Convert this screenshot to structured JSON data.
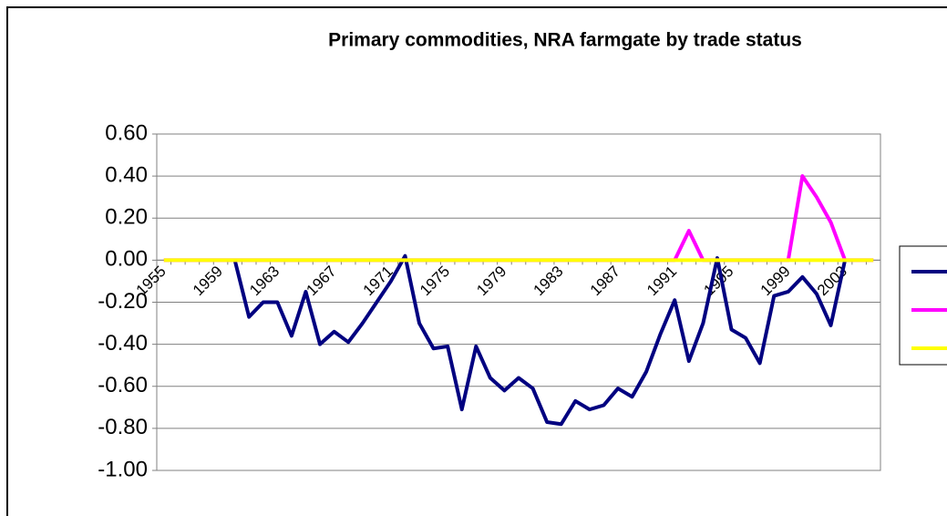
{
  "chart_data": {
    "type": "line",
    "title": "Primary commodities, NRA farmgate by trade status",
    "categories": [
      "1955",
      null,
      null,
      null,
      "1959",
      null,
      null,
      null,
      "1963",
      null,
      null,
      null,
      "1967",
      null,
      null,
      null,
      "1971",
      null,
      null,
      null,
      "1975",
      null,
      null,
      null,
      "1979",
      null,
      null,
      null,
      "1983",
      null,
      null,
      null,
      "1987",
      null,
      null,
      null,
      "1991",
      null,
      null,
      null,
      "1995",
      null,
      null,
      null,
      "1999",
      null,
      null,
      null,
      "2003",
      null,
      null
    ],
    "series": [
      {
        "color": "#000080",
        "values": [
          null,
          null,
          null,
          null,
          null,
          0.0,
          -0.27,
          -0.2,
          -0.2,
          -0.36,
          -0.15,
          -0.4,
          -0.34,
          -0.39,
          -0.3,
          -0.2,
          -0.1,
          0.02,
          -0.3,
          -0.42,
          -0.41,
          -0.71,
          -0.41,
          -0.56,
          -0.62,
          -0.56,
          -0.61,
          -0.77,
          -0.78,
          -0.67,
          -0.71,
          -0.69,
          -0.61,
          -0.65,
          -0.53,
          -0.35,
          -0.19,
          -0.48,
          -0.3,
          0.01,
          -0.33,
          -0.37,
          -0.49,
          -0.17,
          -0.15,
          -0.08,
          -0.16,
          -0.31,
          0.0,
          null,
          null
        ]
      },
      {
        "color": "#ff00ff",
        "values": [
          0,
          0,
          0,
          0,
          0,
          0,
          0,
          0,
          0,
          0,
          0,
          0,
          0,
          0,
          0,
          0,
          0,
          0,
          0,
          0,
          0,
          0,
          0,
          0,
          0,
          0,
          0,
          0,
          0,
          0,
          0,
          0,
          0,
          0,
          0,
          0,
          0,
          0.14,
          0,
          0,
          0,
          0,
          0,
          0,
          0,
          0.4,
          0.3,
          0.18,
          0,
          0,
          0
        ]
      },
      {
        "color": "#ffff00",
        "values": [
          0,
          0,
          0,
          0,
          0,
          0,
          0,
          0,
          0,
          0,
          0,
          0,
          0,
          0,
          0,
          0,
          0,
          0,
          0,
          0,
          0,
          0,
          0,
          0,
          0,
          0,
          0,
          0,
          0,
          0,
          0,
          0,
          0,
          0,
          0,
          0,
          0,
          0,
          0,
          0,
          0,
          0,
          0,
          0,
          0,
          0,
          0,
          0,
          0,
          0,
          0
        ]
      }
    ],
    "ylim": [
      -1.0,
      0.6
    ],
    "yticks": [
      {
        "value": -1.0,
        "label": "-1.00"
      },
      {
        "value": -0.8,
        "label": "-0.80"
      },
      {
        "value": -0.6,
        "label": "-0.60"
      },
      {
        "value": -0.4,
        "label": "-0.40"
      },
      {
        "value": -0.2,
        "label": "-0.20"
      },
      {
        "value": 0,
        "label": "0.00"
      },
      {
        "value": 0.2,
        "label": "0.20"
      },
      {
        "value": 0.4,
        "label": "0.40"
      },
      {
        "value": 0.6,
        "label": "0.60"
      }
    ],
    "grid": true
  }
}
